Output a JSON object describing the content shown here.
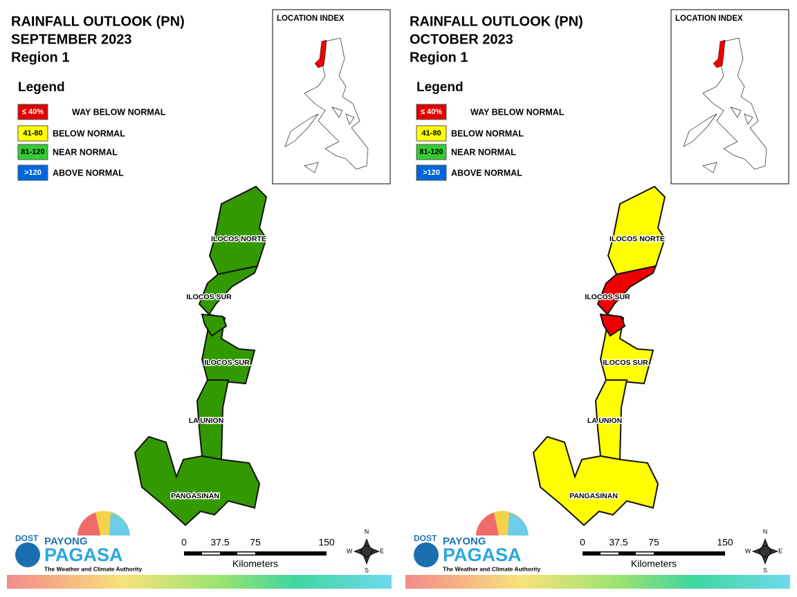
{
  "panels": [
    {
      "title": [
        "RAINFALL OUTLOOK (PN)",
        "SEPTEMBER 2023",
        "Region 1"
      ],
      "legend_title": "Legend",
      "legend": [
        {
          "code": "≤ 40%",
          "label": "WAY BELOW NORMAL",
          "color": "#e00000"
        },
        {
          "code": "41-80",
          "label": "BELOW NORMAL",
          "color": "#ffff00"
        },
        {
          "code": "81-120",
          "label": "NEAR NORMAL",
          "color": "#33cc33"
        },
        {
          "code": ">120",
          "label": "ABOVE NORMAL",
          "color": "#0066dd"
        }
      ],
      "location_index": "LOCATION INDEX",
      "provinces": [
        "ILOCOS NORTE",
        "ILOCOS SUR",
        "ILOCOS SUR",
        "LA UNION",
        "PANGASINAN"
      ],
      "map_fills": [
        "#339900",
        "#339900",
        "#339900",
        "#339900",
        "#339900",
        "#339900"
      ],
      "scale": [
        "0",
        "37.5",
        "75",
        "150"
      ],
      "scale_unit": "Kilometers",
      "compass": [
        "N",
        "E",
        "S",
        "W"
      ],
      "logo": [
        "DOST",
        "PAYONG",
        "PAGASA",
        "The Weather and Climate Authority"
      ]
    },
    {
      "title": [
        "RAINFALL OUTLOOK (PN)",
        "OCTOBER 2023",
        "Region 1"
      ],
      "legend_title": "Legend",
      "legend": [
        {
          "code": "≤ 40%",
          "label": "WAY BELOW NORMAL",
          "color": "#e00000"
        },
        {
          "code": "41-80",
          "label": "BELOW NORMAL",
          "color": "#ffff00"
        },
        {
          "code": "81-120",
          "label": "NEAR NORMAL",
          "color": "#33cc33"
        },
        {
          "code": ">120",
          "label": "ABOVE NORMAL",
          "color": "#0066dd"
        }
      ],
      "location_index": "LOCATION INDEX",
      "provinces": [
        "ILOCOS NORTE",
        "ILOCOS SUR",
        "ILOCOS SUR",
        "LA UNION",
        "PANGASINAN"
      ],
      "map_fills": [
        "#ffff00",
        "#ee0000",
        "#ffff00",
        "#ee0000",
        "#ffff00",
        "#ffff00"
      ],
      "scale": [
        "0",
        "37.5",
        "75",
        "150"
      ],
      "scale_unit": "Kilometers",
      "compass": [
        "N",
        "E",
        "S",
        "W"
      ],
      "logo": [
        "DOST",
        "PAYONG",
        "PAGASA",
        "The Weather and Climate Authority"
      ]
    }
  ]
}
